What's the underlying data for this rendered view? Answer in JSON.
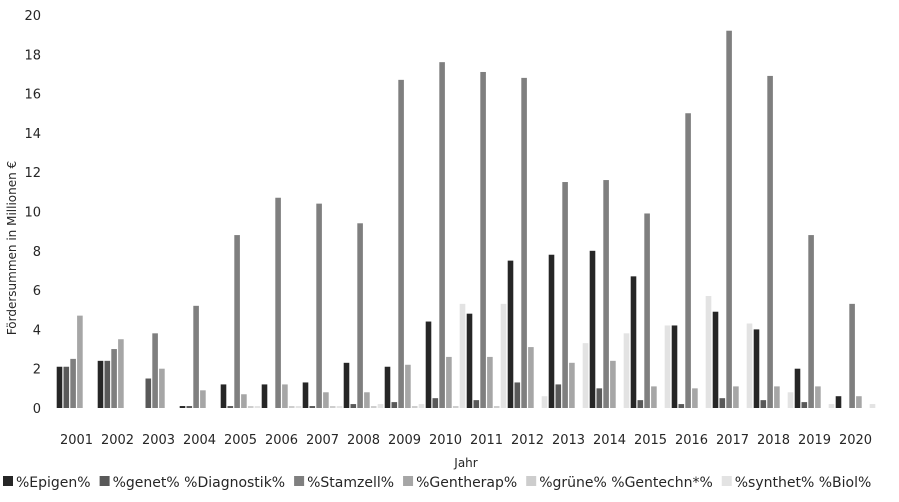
{
  "chart_data": {
    "type": "bar",
    "xlabel": "Jahr",
    "ylabel": "Fördersummen in Millionen €",
    "ylim": [
      0,
      20
    ],
    "yticks": [
      0,
      2,
      4,
      6,
      8,
      10,
      12,
      14,
      16,
      18,
      20
    ],
    "grid": false,
    "legend_position": "bottom",
    "categories": [
      "2001",
      "2002",
      "2003",
      "2004",
      "2005",
      "2006",
      "2007",
      "2008",
      "2009",
      "2010",
      "2011",
      "2012",
      "2013",
      "2014",
      "2015",
      "2016",
      "2017",
      "2018",
      "2019",
      "2020"
    ],
    "series": [
      {
        "name": "%Epigen%",
        "color": "#262626",
        "values": [
          2.1,
          2.4,
          0,
          0.1,
          1.2,
          1.2,
          1.3,
          2.3,
          2.1,
          4.4,
          4.8,
          7.5,
          7.8,
          8.0,
          6.7,
          4.2,
          4.9,
          4.0,
          2.0,
          0.6
        ]
      },
      {
        "name": "%genet% %Diagnostik%",
        "color": "#595959",
        "values": [
          2.1,
          2.4,
          1.5,
          0.1,
          0.1,
          0,
          0.1,
          0.2,
          0.3,
          0.5,
          0.4,
          1.3,
          1.2,
          1.0,
          0.4,
          0.2,
          0.5,
          0.4,
          0.3,
          0
        ]
      },
      {
        "name": "%Stamzell%",
        "color": "#7f7f7f",
        "values": [
          2.5,
          3.0,
          3.8,
          5.2,
          8.8,
          10.7,
          10.4,
          9.4,
          16.7,
          17.6,
          17.1,
          16.8,
          11.5,
          11.6,
          9.9,
          15.0,
          19.2,
          16.9,
          8.8,
          5.3
        ]
      },
      {
        "name": "%Gentherap%",
        "color": "#a6a6a6",
        "values": [
          4.7,
          3.5,
          2.0,
          0.9,
          0.7,
          1.2,
          0.8,
          0.8,
          2.2,
          2.6,
          2.6,
          3.1,
          2.3,
          2.4,
          1.1,
          1.0,
          1.1,
          1.1,
          1.1,
          0.6
        ]
      },
      {
        "name": "%grüne% %Gentechn*%",
        "color": "#cdcdcd",
        "values": [
          0,
          0,
          0,
          0,
          0.1,
          0.1,
          0.1,
          0.1,
          0.1,
          0.1,
          0.1,
          0,
          0,
          0,
          0,
          0,
          0,
          0,
          0,
          0
        ]
      },
      {
        "name": "%synthet% %Biol%",
        "color": "#e3e3e3",
        "values": [
          0,
          0,
          0,
          0,
          0.1,
          0.1,
          0.1,
          0.2,
          0.2,
          5.3,
          5.3,
          0.6,
          3.3,
          3.8,
          4.2,
          5.7,
          4.3,
          0.8,
          0.2,
          0.2
        ]
      }
    ]
  }
}
